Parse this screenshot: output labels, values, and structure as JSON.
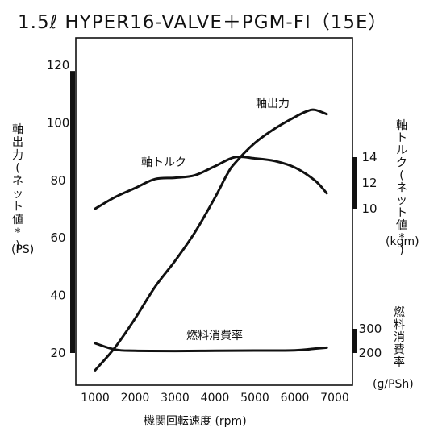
{
  "chart_data": {
    "type": "line",
    "title": "1.5ℓ HYPER16-VALVE＋PGM-FI（15E）",
    "xlabel": "機関回転速度 (rpm)",
    "x_ticks": [
      1000,
      2000,
      3000,
      4000,
      5000,
      6000,
      7000
    ],
    "xlim": [
      700,
      7300
    ],
    "y_left": {
      "label_lines": [
        "軸",
        "出",
        "力",
        "(",
        "ネ",
        "ッ",
        "ト",
        "値",
        "*",
        ")"
      ],
      "unit": "(PS)",
      "ticks": [
        20,
        40,
        60,
        80,
        100,
        120
      ],
      "ylim": [
        12,
        130
      ]
    },
    "y_torque": {
      "label_lines": [
        "軸",
        "ト",
        "ル",
        "ク",
        "(",
        "ネ",
        "ッ",
        "ト",
        "値",
        "*",
        ")"
      ],
      "unit": "(kgm)",
      "ticks": [
        10,
        12,
        14
      ]
    },
    "y_fuel": {
      "label_lines": [
        "燃",
        "料",
        "消",
        "費",
        "率"
      ],
      "unit": "(g/PSh)",
      "ticks": [
        200,
        300
      ]
    },
    "series": [
      {
        "name": "軸出力",
        "axis": "PS",
        "x": [
          1000,
          1500,
          2000,
          2500,
          3000,
          3500,
          4000,
          4300,
          4500,
          5000,
          5500,
          6000,
          6300,
          6500,
          6800
        ],
        "values": [
          14,
          22,
          32,
          43,
          52,
          62,
          74,
          82,
          86,
          93,
          98,
          102,
          104,
          104.5,
          103
        ]
      },
      {
        "name": "軸トルク",
        "axis": "kgm",
        "x": [
          1000,
          1500,
          2000,
          2500,
          3000,
          3500,
          4000,
          4500,
          5000,
          5500,
          6000,
          6500,
          6800
        ],
        "values": [
          10.0,
          10.9,
          11.6,
          12.3,
          12.4,
          12.6,
          13.3,
          14.0,
          13.9,
          13.7,
          13.2,
          12.2,
          11.2
        ]
      },
      {
        "name": "燃料消費率",
        "axis": "g/PSh",
        "x": [
          1000,
          1500,
          2000,
          3000,
          4000,
          5000,
          6000,
          6500,
          6800
        ],
        "values": [
          240,
          214,
          209,
          208,
          209,
          210,
          211,
          218,
          222
        ]
      }
    ]
  }
}
